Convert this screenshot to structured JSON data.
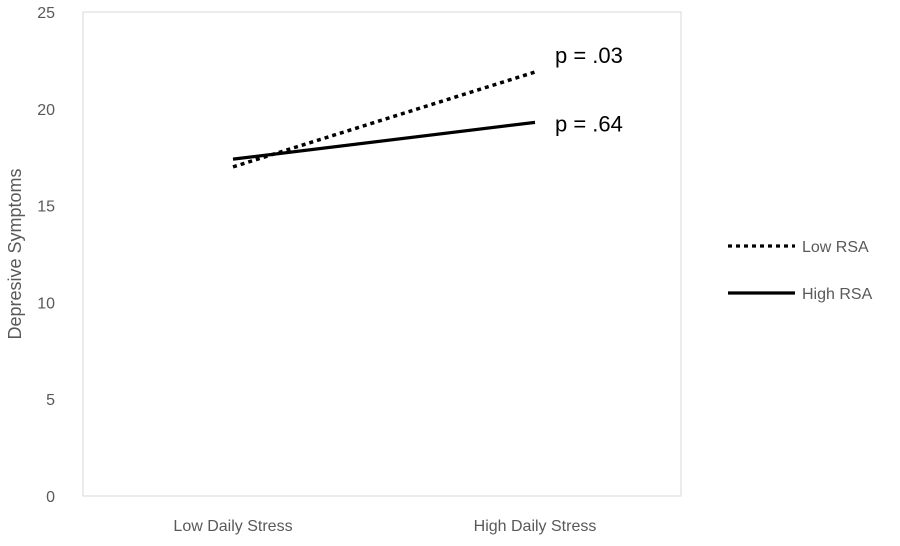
{
  "chart_data": {
    "type": "line",
    "ylabel": "Depresive Symptoms",
    "xlabel": "",
    "categories": [
      "Low Daily Stress",
      "High Daily Stress"
    ],
    "ylim": [
      0,
      25
    ],
    "yticks": [
      0,
      5,
      10,
      15,
      20,
      25
    ],
    "grid": false,
    "legend_position": "right",
    "series": [
      {
        "name": "Low RSA",
        "values": [
          17.0,
          21.9
        ],
        "style": "dotted",
        "color": "#000000",
        "annotation": "p = .03"
      },
      {
        "name": "High RSA",
        "values": [
          17.4,
          19.3
        ],
        "style": "solid",
        "color": "#000000",
        "annotation": "p = .64"
      }
    ]
  }
}
